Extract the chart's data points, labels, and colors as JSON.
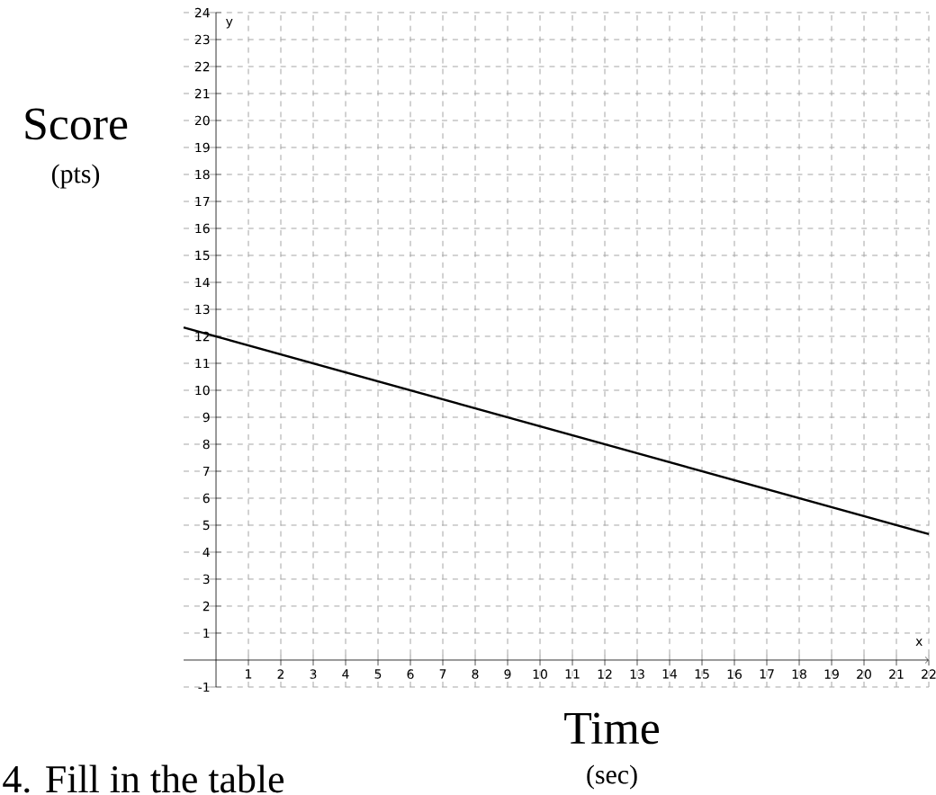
{
  "chart_data": {
    "type": "line",
    "xlabel": "Time",
    "ylabel": "Score",
    "annotations": [
      "(sec)",
      "(pts)",
      "x",
      "y",
      "4.  Fill in the table"
    ],
    "x": [
      -1,
      22
    ],
    "series": [
      {
        "color": "#000000",
        "values": [
          12.33,
          4.67
        ]
      }
    ],
    "xlim": [
      -1,
      22
    ],
    "ylim": [
      -1,
      24
    ],
    "xticks": [
      1,
      2,
      3,
      4,
      5,
      6,
      7,
      8,
      9,
      10,
      11,
      12,
      13,
      14,
      15,
      16,
      17,
      18,
      19,
      20,
      21,
      22
    ],
    "yticks": [
      -1,
      1,
      2,
      3,
      4,
      5,
      6,
      7,
      8,
      9,
      10,
      11,
      12,
      13,
      14,
      15,
      16,
      17,
      18,
      19,
      20,
      21,
      22,
      23,
      24
    ],
    "grid": true,
    "marker": "none",
    "line_style": "solid"
  }
}
